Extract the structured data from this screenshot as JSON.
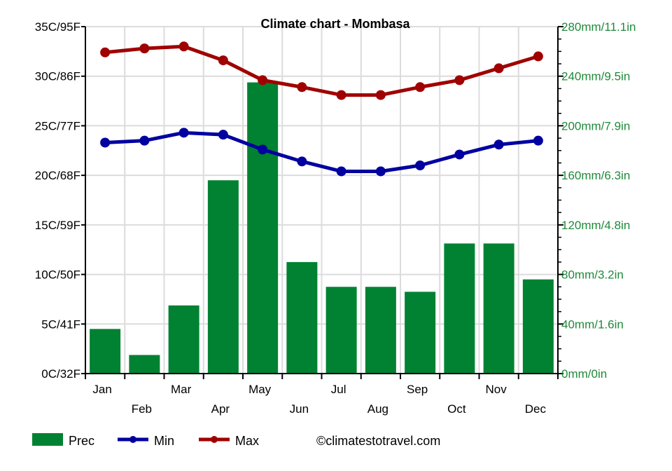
{
  "chart_data": {
    "type": "bar+line",
    "title": "Climate chart - Mombasa",
    "categories": [
      "Jan",
      "Feb",
      "Mar",
      "Apr",
      "May",
      "Jun",
      "Jul",
      "Aug",
      "Sep",
      "Oct",
      "Nov",
      "Dec"
    ],
    "left_axis": {
      "range": [
        0,
        35
      ],
      "ticks": [
        "0C/32F",
        "5C/41F",
        "10C/50F",
        "15C/59F",
        "20C/68F",
        "25C/77F",
        "30C/86F",
        "35C/95F"
      ]
    },
    "right_axis": {
      "range": [
        0,
        280
      ],
      "ticks": [
        "0mm/0in",
        "40mm/1.6in",
        "80mm/3.2in",
        "120mm/4.8in",
        "160mm/6.3in",
        "200mm/7.9in",
        "240mm/9.5in",
        "280mm/11.1in"
      ]
    },
    "grid": true,
    "legend_placement": "bottom-left",
    "series": [
      {
        "name": "Prec",
        "type": "bar",
        "axis": "right",
        "color": "#008232",
        "values": [
          36,
          15,
          55,
          156,
          235,
          90,
          70,
          70,
          66,
          105,
          105,
          76
        ]
      },
      {
        "name": "Min",
        "type": "line",
        "axis": "left",
        "color": "#0000a0",
        "values": [
          23.3,
          23.5,
          24.3,
          24.1,
          22.6,
          21.4,
          20.4,
          20.4,
          21.0,
          22.1,
          23.1,
          23.5
        ]
      },
      {
        "name": "Max",
        "type": "line",
        "axis": "left",
        "color": "#a00000",
        "values": [
          32.4,
          32.8,
          33.0,
          31.6,
          29.6,
          28.9,
          28.1,
          28.1,
          28.9,
          29.6,
          30.8,
          32.0
        ]
      }
    ]
  },
  "credit": "©climatestotravel.com"
}
